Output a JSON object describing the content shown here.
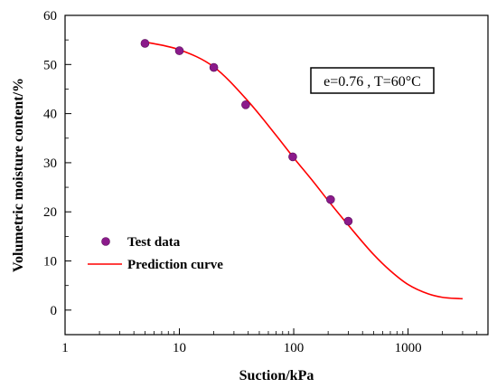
{
  "chart_data": {
    "type": "scatter",
    "xlabel": "Suction/kPa",
    "ylabel": "Volumetric moisture content/%",
    "xscale": "log",
    "xlim": [
      1,
      5000
    ],
    "ylim": [
      -5,
      60
    ],
    "xticks": [
      1,
      10,
      100,
      1000
    ],
    "xtick_labels": [
      "1",
      "10",
      "100",
      "1000"
    ],
    "yticks": [
      0,
      10,
      20,
      30,
      40,
      50,
      60
    ],
    "ytick_labels": [
      "0",
      "10",
      "20",
      "30",
      "40",
      "50",
      "60"
    ],
    "grid": false,
    "legend_position": "bottom-left",
    "annotation": "e=0.76 , T=60°C",
    "series": [
      {
        "name": "Test data",
        "kind": "scatter",
        "color": "#8b1a8b",
        "x": [
          5,
          10,
          20,
          38,
          98,
          210,
          300
        ],
        "y": [
          54.3,
          52.8,
          49.4,
          41.8,
          31.2,
          22.5,
          18.1
        ]
      },
      {
        "name": "Prediction curve",
        "kind": "line",
        "color": "#ff0000",
        "x": [
          5,
          10,
          20,
          40,
          70,
          100,
          150,
          200,
          300,
          500,
          700,
          1000,
          1500,
          2000,
          3000
        ],
        "y": [
          54.6,
          53.0,
          49.5,
          42.5,
          35.6,
          31.0,
          26.0,
          22.3,
          17.3,
          11.3,
          8.0,
          5.2,
          3.3,
          2.6,
          2.3
        ]
      }
    ]
  }
}
